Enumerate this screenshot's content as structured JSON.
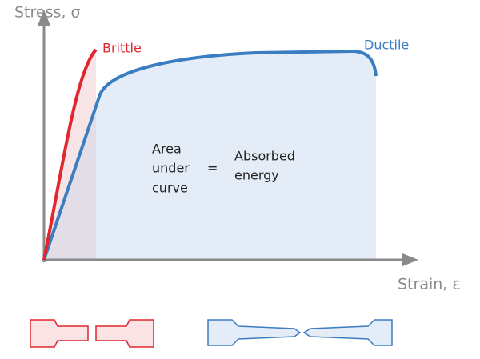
{
  "axes": {
    "y_label": "Stress, σ",
    "x_label": "Strain, ε"
  },
  "curves": [
    {
      "label": "Brittle"
    },
    {
      "label": "Ductile"
    }
  ],
  "annotation": {
    "left": [
      "Area",
      "under",
      "curve"
    ],
    "equals": "=",
    "right": [
      "Absorbed",
      "energy"
    ]
  }
}
